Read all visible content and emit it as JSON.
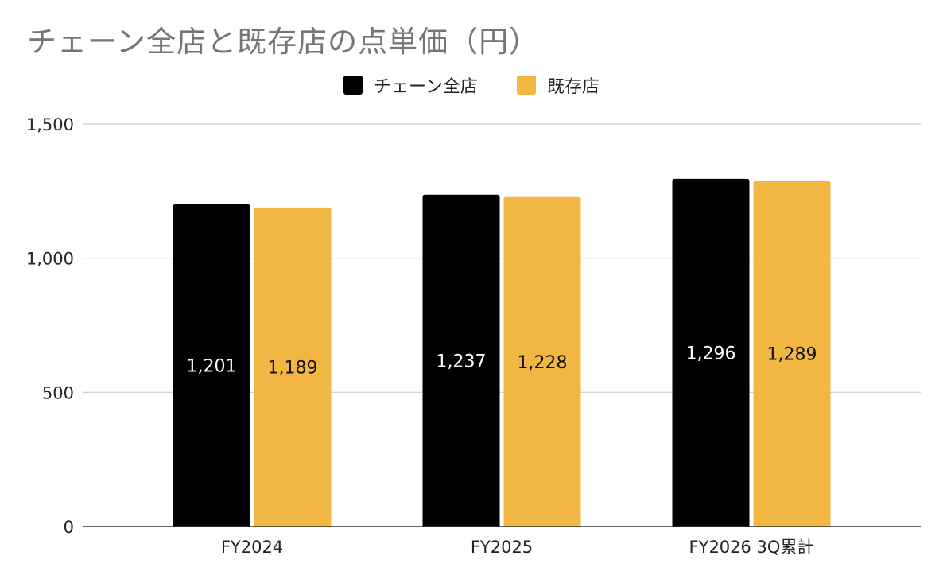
{
  "chart_data": {
    "type": "bar",
    "title": "チェーン全店と既存店の点単価（円）",
    "categories": [
      "FY2024",
      "FY2025",
      "FY2026 3Q累計"
    ],
    "series": [
      {
        "name": "チェーン全店",
        "color": "#000000",
        "label_color": "#ffffff",
        "values": [
          1201,
          1237,
          1296
        ],
        "labels": [
          "1,201",
          "1,237",
          "1,296"
        ]
      },
      {
        "name": "既存店",
        "color": "#F2B742",
        "label_color": "#111111",
        "values": [
          1189,
          1228,
          1289
        ],
        "labels": [
          "1,189",
          "1,228",
          "1,289"
        ]
      }
    ],
    "ylim": [
      0,
      1500
    ],
    "yticks": [
      0,
      500,
      1000,
      1500
    ],
    "ytick_labels": [
      "0",
      "500",
      "1,000",
      "1,500"
    ],
    "grid": true,
    "legend_position": "top-center"
  }
}
